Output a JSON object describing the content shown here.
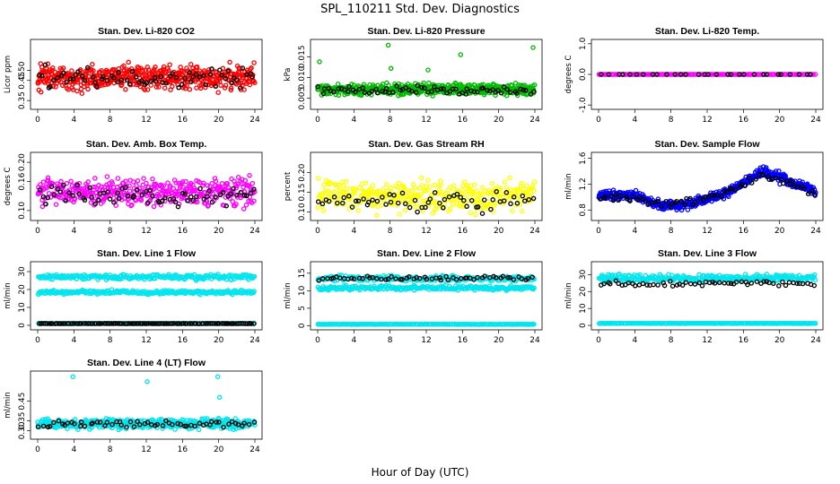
{
  "title": "SPL_110211  Std. Dev. Diagnostics",
  "xlabel": "Hour of Day (UTC)",
  "chart_data": [
    {
      "type": "scatter",
      "title": "Stan. Dev. Li-820 CO2",
      "ylabel": "Licor ppm",
      "xlim": [
        0,
        24
      ],
      "ylim": [
        0.32,
        0.64
      ],
      "xticks": [
        "0",
        "4",
        "8",
        "12",
        "16",
        "20",
        "24"
      ],
      "yticks": [
        "0.35",
        "0.45",
        "0.50"
      ],
      "ytick_values": [
        0.35,
        0.45,
        0.5
      ],
      "series": [
        {
          "color": "#ff0000",
          "base": 0.465,
          "spread": 0.055,
          "n": 520
        },
        {
          "color": "#000000",
          "base": 0.46,
          "spread": 0.05,
          "n": 70
        }
      ]
    },
    {
      "type": "scatter",
      "title": "Stan. Dev. Li-820 Pressure",
      "ylabel": "kPa",
      "xlim": [
        0,
        24
      ],
      "ylim": [
        0.003,
        0.0185
      ],
      "xticks": [
        "0",
        "4",
        "8",
        "12",
        "16",
        "20",
        "24"
      ],
      "yticks": [
        "0.005",
        "0.010",
        "0.015"
      ],
      "ytick_values": [
        0.005,
        0.01,
        0.015
      ],
      "series": [
        {
          "color": "#00bb00",
          "base": 0.0072,
          "spread": 0.0012,
          "n": 520
        },
        {
          "color": "#000000",
          "base": 0.007,
          "spread": 0.001,
          "n": 70
        }
      ],
      "outliers": [
        [
          0.2,
          0.0138,
          "#00bb00"
        ],
        [
          7.8,
          0.0178,
          "#00bb00"
        ],
        [
          8.1,
          0.0122,
          "#00bb00"
        ],
        [
          15.8,
          0.0155,
          "#00bb00"
        ],
        [
          23.8,
          0.0172,
          "#00bb00"
        ],
        [
          12.2,
          0.0118,
          "#00bb00"
        ]
      ]
    },
    {
      "type": "scatter",
      "title": "Stan. Dev. Li-820 Temp.",
      "ylabel": "degrees C",
      "xlim": [
        0,
        24
      ],
      "ylim": [
        -1.05,
        1.05
      ],
      "xticks": [
        "0",
        "4",
        "8",
        "12",
        "16",
        "20",
        "24"
      ],
      "yticks": [
        "-1.0",
        "0.0",
        "1.0"
      ],
      "ytick_values": [
        -1.0,
        0.0,
        1.0
      ],
      "series": [
        {
          "color": "#ff00ff",
          "base": 0.0,
          "spread": 0.0,
          "n": 160
        },
        {
          "color": "#000000",
          "base": 0.0,
          "spread": 0.0,
          "n": 30
        }
      ]
    },
    {
      "type": "scatter",
      "title": "Stan. Dev. Amb. Box Temp.",
      "ylabel": "degrees C",
      "xlim": [
        0,
        24
      ],
      "ylim": [
        0.085,
        0.215
      ],
      "xticks": [
        "0",
        "4",
        "8",
        "12",
        "16",
        "20",
        "24"
      ],
      "yticks": [
        "0.10",
        "0.16",
        "0.20"
      ],
      "ytick_values": [
        0.1,
        0.16,
        0.2
      ],
      "series": [
        {
          "color": "#ff00ff",
          "base": 0.14,
          "spread": 0.025,
          "n": 420
        },
        {
          "color": "#000000",
          "base": 0.13,
          "spread": 0.02,
          "n": 70
        }
      ]
    },
    {
      "type": "scatter",
      "title": "Stan. Dev. Gas Stream RH",
      "ylabel": "percent",
      "xlim": [
        0,
        24
      ],
      "ylim": [
        0.085,
        0.245
      ],
      "xticks": [
        "0",
        "4",
        "8",
        "12",
        "16",
        "20",
        "24"
      ],
      "yticks": [
        "0.10",
        "0.15",
        "0.20"
      ],
      "ytick_values": [
        0.1,
        0.15,
        0.2
      ],
      "series": [
        {
          "color": "#ffff00",
          "base": 0.14,
          "spread": 0.035,
          "n": 380
        },
        {
          "color": "#000000",
          "base": 0.125,
          "spread": 0.025,
          "n": 60
        }
      ]
    },
    {
      "type": "scatter",
      "title": "Stan. Dev. Sample Flow",
      "ylabel": "ml/min",
      "xlim": [
        0,
        24
      ],
      "ylim": [
        0.68,
        1.65
      ],
      "xticks": [
        "0",
        "4",
        "8",
        "12",
        "16",
        "20",
        "24"
      ],
      "yticks": [
        "0.8",
        "1.2",
        "1.6"
      ],
      "ytick_values": [
        0.8,
        1.2,
        1.6
      ],
      "series": [
        {
          "color": "#0000ff",
          "base": 1.05,
          "spread": 0.07,
          "n": 480,
          "trend": [
            [
              0,
              1.02
            ],
            [
              4,
              1.03
            ],
            [
              7,
              0.85
            ],
            [
              10,
              0.9
            ],
            [
              14,
              1.05
            ],
            [
              18,
              1.4
            ],
            [
              21,
              1.25
            ],
            [
              24,
              1.08
            ]
          ]
        },
        {
          "color": "#000000",
          "base": 1.0,
          "spread": 0.05,
          "n": 70,
          "trend": [
            [
              0,
              1.0
            ],
            [
              4,
              1.0
            ],
            [
              7,
              0.87
            ],
            [
              10,
              0.92
            ],
            [
              14,
              1.05
            ],
            [
              18,
              1.35
            ],
            [
              21,
              1.22
            ],
            [
              24,
              1.05
            ]
          ]
        }
      ]
    },
    {
      "type": "scatter",
      "title": "Stan. Dev. Line 1 Flow",
      "ylabel": "ml/min",
      "xlim": [
        0,
        24
      ],
      "ylim": [
        -1,
        34
      ],
      "xticks": [
        "0",
        "4",
        "8",
        "12",
        "16",
        "20",
        "24"
      ],
      "yticks": [
        "0",
        "10",
        "20",
        "30"
      ],
      "ytick_values": [
        0,
        10,
        20,
        30
      ],
      "series": [
        {
          "color": "#00e5ee",
          "base": 27,
          "spread": 1.3,
          "n": 260
        },
        {
          "color": "#00e5ee",
          "base": 18.5,
          "spread": 1.0,
          "n": 260
        },
        {
          "color": "#00e5ee",
          "base": 1.0,
          "spread": 0.1,
          "n": 200
        },
        {
          "color": "#000000",
          "base": 1.0,
          "spread": 0.05,
          "n": 120
        }
      ]
    },
    {
      "type": "scatter",
      "title": "Stan. Dev. Line 2 Flow",
      "ylabel": "ml/min",
      "xlim": [
        0,
        24
      ],
      "ylim": [
        -0.4,
        17.5
      ],
      "xticks": [
        "0",
        "4",
        "8",
        "12",
        "16",
        "20",
        "24"
      ],
      "yticks": [
        "0",
        "5",
        "10",
        "15"
      ],
      "ytick_values": [
        0,
        5,
        10,
        15
      ],
      "series": [
        {
          "color": "#00e5ee",
          "base": 13.5,
          "spread": 0.7,
          "n": 240
        },
        {
          "color": "#00e5ee",
          "base": 10.8,
          "spread": 0.6,
          "n": 240
        },
        {
          "color": "#00e5ee",
          "base": 0.4,
          "spread": 0.05,
          "n": 200
        },
        {
          "color": "#000000",
          "base": 13.6,
          "spread": 0.6,
          "n": 60
        }
      ]
    },
    {
      "type": "scatter",
      "title": "Stan. Dev. Line 3 Flow",
      "ylabel": "ml/min",
      "xlim": [
        0,
        24
      ],
      "ylim": [
        -1,
        36
      ],
      "xticks": [
        "0",
        "4",
        "8",
        "12",
        "16",
        "20",
        "24"
      ],
      "yticks": [
        "0",
        "10",
        "20",
        "30"
      ],
      "ytick_values": [
        0,
        10,
        20,
        30
      ],
      "series": [
        {
          "color": "#00e5ee",
          "base": 28,
          "spread": 2.0,
          "n": 320
        },
        {
          "color": "#00e5ee",
          "base": 1.2,
          "spread": 0.1,
          "n": 200
        },
        {
          "color": "#000000",
          "base": 24.5,
          "spread": 1.5,
          "n": 60
        }
      ]
    },
    {
      "type": "scatter",
      "title": "Stan. Dev. Line 4 (LT) Flow",
      "ylabel": "ml/min",
      "xlim": [
        0,
        24
      ],
      "ylim": [
        0.27,
        0.59
      ],
      "xticks": [
        "0",
        "4",
        "8",
        "12",
        "16",
        "20",
        "24"
      ],
      "yticks": [
        "0.30",
        "0.35",
        "0.45"
      ],
      "ytick_values": [
        0.3,
        0.35,
        0.45
      ],
      "series": [
        {
          "color": "#00e5ee",
          "base": 0.335,
          "spread": 0.022,
          "n": 460
        },
        {
          "color": "#000000",
          "base": 0.335,
          "spread": 0.018,
          "n": 60
        }
      ],
      "outliers": [
        [
          3.9,
          0.575,
          "#00e5ee"
        ],
        [
          12.1,
          0.55,
          "#00e5ee"
        ],
        [
          19.9,
          0.575,
          "#00e5ee"
        ],
        [
          20.1,
          0.47,
          "#00e5ee"
        ]
      ]
    }
  ]
}
